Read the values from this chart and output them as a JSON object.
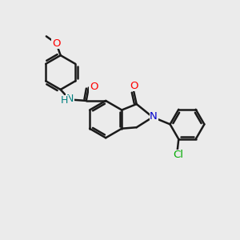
{
  "background_color": "#ebebeb",
  "bond_color": "#1a1a1a",
  "bond_width": 1.8,
  "atom_colors": {
    "O": "#ff0000",
    "N": "#0000cc",
    "Cl": "#00aa00",
    "NH_color": "#008080"
  },
  "font_size": 8.5,
  "fig_size": [
    3.0,
    3.0
  ],
  "dpi": 100
}
